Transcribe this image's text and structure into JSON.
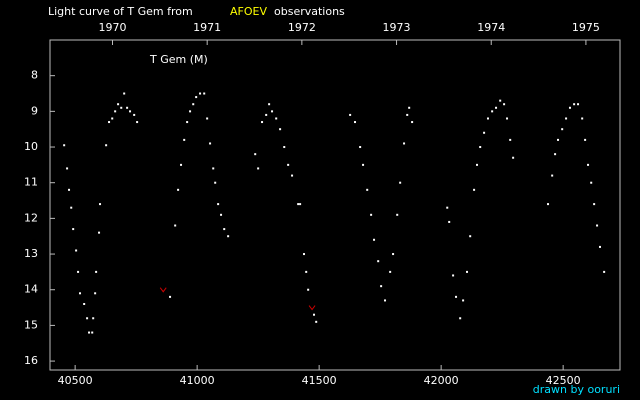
{
  "chart_data": {
    "type": "scatter",
    "title": "Light curve of T Gem from",
    "title_highlight": "AFOEV",
    "title_suffix": "observations",
    "credit": "drawn by ooruri",
    "xlim": [
      40397,
      42733
    ],
    "xticks": [
      40500,
      41000,
      41500,
      42000,
      42500
    ],
    "ylim": [
      7,
      16.25
    ],
    "y_inverted": true,
    "yticks": [
      8,
      9,
      10,
      11,
      12,
      13,
      14,
      15,
      16
    ],
    "x2lim": [
      1969.34,
      1975.36
    ],
    "x2ticks": [
      1970,
      1971,
      1972,
      1973,
      1974,
      1975
    ],
    "series": [
      {
        "name": "T Gem (M)",
        "color": "#ffffff",
        "x": [
          40455,
          40467,
          40475,
          40484,
          40492,
          40504,
          40512,
          40520,
          40537,
          40549,
          40557,
          40570,
          40574,
          40582,
          40586,
          40598,
          40602,
          40627,
          40639,
          40652,
          40664,
          40676,
          40689,
          40701,
          40713,
          40725,
          40742,
          40754,
          40889,
          40910,
          40922,
          40934,
          40947,
          40959,
          40971,
          40984,
          40996,
          41012,
          41029,
          41041,
          41053,
          41066,
          41074,
          41086,
          41098,
          41111,
          41127,
          41238,
          41250,
          41266,
          41283,
          41295,
          41307,
          41324,
          41340,
          41357,
          41373,
          41389,
          41414,
          41422,
          41438,
          41447,
          41455,
          41479,
          41488,
          41627,
          41647,
          41668,
          41680,
          41697,
          41713,
          41725,
          41742,
          41754,
          41770,
          41791,
          41803,
          41820,
          41832,
          41848,
          41861,
          41869,
          41881,
          42025,
          42033,
          42049,
          42061,
          42078,
          42090,
          42106,
          42119,
          42135,
          42147,
          42160,
          42176,
          42192,
          42209,
          42225,
          42242,
          42258,
          42270,
          42283,
          42295,
          42438,
          42455,
          42467,
          42479,
          42496,
          42512,
          42528,
          42545,
          42561,
          42578,
          42590,
          42602,
          42615,
          42627,
          42639,
          42651,
          42668
        ],
        "y": [
          9.95,
          10.6,
          11.2,
          11.7,
          12.3,
          12.9,
          13.5,
          14.1,
          14.4,
          14.8,
          15.2,
          15.2,
          14.8,
          14.1,
          13.5,
          12.4,
          11.6,
          9.95,
          9.3,
          9.2,
          9.0,
          8.8,
          8.9,
          8.5,
          8.9,
          9.0,
          9.1,
          9.3,
          14.2,
          12.2,
          11.2,
          10.5,
          9.8,
          9.3,
          9.0,
          8.8,
          8.6,
          8.5,
          8.5,
          9.2,
          9.9,
          10.6,
          11.0,
          11.6,
          11.9,
          12.3,
          12.5,
          10.2,
          10.6,
          9.3,
          9.1,
          8.8,
          9.0,
          9.2,
          9.5,
          10.0,
          10.5,
          10.8,
          11.6,
          11.6,
          13.0,
          13.5,
          14.0,
          14.7,
          14.9,
          9.1,
          9.3,
          10.0,
          10.5,
          11.2,
          11.9,
          12.6,
          13.2,
          13.9,
          14.3,
          13.5,
          13.0,
          11.9,
          11.0,
          9.9,
          9.1,
          8.9,
          9.3,
          11.7,
          12.1,
          13.6,
          14.2,
          14.8,
          14.3,
          13.5,
          12.5,
          11.2,
          10.5,
          10.0,
          9.6,
          9.2,
          9.0,
          8.9,
          8.7,
          8.8,
          9.2,
          9.8,
          10.3,
          11.6,
          10.8,
          10.2,
          9.8,
          9.5,
          9.2,
          8.9,
          8.8,
          8.8,
          9.2,
          9.8,
          10.5,
          11.0,
          11.6,
          12.2,
          12.8,
          13.5
        ]
      },
      {
        "color": "#cc0000",
        "marker": "v",
        "x": [
          40861,
          41471
        ],
        "y": [
          14.0,
          14.5
        ]
      }
    ]
  }
}
